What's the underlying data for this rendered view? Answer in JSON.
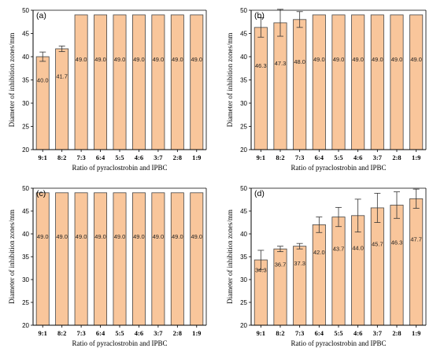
{
  "chart_data": [
    {
      "type": "bar",
      "panel_label": "(a)",
      "categories": [
        "9:1",
        "8:2",
        "7:3",
        "6:4",
        "5:5",
        "4:6",
        "3:7",
        "2:8",
        "1:9"
      ],
      "values": [
        40.0,
        41.7,
        49.0,
        49.0,
        49.0,
        49.0,
        49.0,
        49.0,
        49.0
      ],
      "value_labels": [
        "40.0",
        "41.7",
        "49.0",
        "49.0",
        "49.0",
        "49.0",
        "49.0",
        "49.0",
        "49.0"
      ],
      "errors": [
        1.0,
        0.6,
        0,
        0,
        0,
        0,
        0,
        0,
        0
      ],
      "ylim": [
        20,
        50
      ],
      "yticks": [
        20,
        25,
        30,
        35,
        40,
        45,
        50
      ],
      "xlabel": "Ratio of pyraclostrobin and IPBC",
      "ylabel": "Diameter of inhibition zones/mm",
      "grid": false,
      "bar_color": "#f9c69b",
      "edge_color": "#444444"
    },
    {
      "type": "bar",
      "panel_label": "(b)",
      "categories": [
        "9:1",
        "8:2",
        "7:3",
        "6:4",
        "5:5",
        "4:6",
        "3:7",
        "2:8",
        "1:9"
      ],
      "values": [
        46.3,
        47.3,
        48.0,
        49.0,
        49.0,
        49.0,
        49.0,
        49.0,
        49.0
      ],
      "value_labels": [
        "46.3",
        "47.3",
        "48.0",
        "49.0",
        "49.0",
        "49.0",
        "49.0",
        "49.0",
        "49.0"
      ],
      "errors": [
        2.1,
        2.9,
        1.7,
        0,
        0,
        0,
        0,
        0,
        0
      ],
      "ylim": [
        20,
        50
      ],
      "yticks": [
        20,
        25,
        30,
        35,
        40,
        45,
        50
      ],
      "xlabel": "Ratio of pyraclostrobin and IPBC",
      "ylabel": "Diameter of inhibition zones/mm",
      "grid": false,
      "bar_color": "#f9c69b",
      "edge_color": "#444444"
    },
    {
      "type": "bar",
      "panel_label": "(c)",
      "categories": [
        "9:1",
        "8:2",
        "7:3",
        "6:4",
        "5:5",
        "4:6",
        "3:7",
        "2:8",
        "1:9"
      ],
      "values": [
        49.0,
        49.0,
        49.0,
        49.0,
        49.0,
        49.0,
        49.0,
        49.0,
        49.0
      ],
      "value_labels": [
        "49.0",
        "49.0",
        "49.0",
        "49.0",
        "49.0",
        "49.0",
        "49.0",
        "49.0",
        "49.0"
      ],
      "errors": [
        0,
        0,
        0,
        0,
        0,
        0,
        0,
        0,
        0
      ],
      "ylim": [
        20,
        50
      ],
      "yticks": [
        20,
        25,
        30,
        35,
        40,
        45,
        50
      ],
      "xlabel": "Ratio of pyraclostrobin and IPBC",
      "ylabel": "Diameter of inhibition zones/mm",
      "grid": false,
      "bar_color": "#f9c69b",
      "edge_color": "#444444"
    },
    {
      "type": "bar",
      "panel_label": "(d)",
      "categories": [
        "9:1",
        "8:2",
        "7:3",
        "6:4",
        "5:5",
        "4:6",
        "3:7",
        "2:8",
        "1:9"
      ],
      "values": [
        34.3,
        36.7,
        37.3,
        42.0,
        43.7,
        44.0,
        45.7,
        46.3,
        47.7
      ],
      "value_labels": [
        "34.3",
        "36.7",
        "37.3",
        "42.0",
        "43.7",
        "44.0",
        "45.7",
        "46.3",
        "47.7"
      ],
      "errors": [
        2.1,
        0.6,
        0.6,
        1.7,
        2.1,
        3.6,
        3.2,
        2.9,
        2.1
      ],
      "ylim": [
        20,
        50
      ],
      "yticks": [
        20,
        25,
        30,
        35,
        40,
        45,
        50
      ],
      "xlabel": "Ratio of pyraclostrobin and IPBC",
      "ylabel": "Diameter of inhibition zones/mm",
      "grid": false,
      "bar_color": "#f9c69b",
      "edge_color": "#444444"
    }
  ]
}
